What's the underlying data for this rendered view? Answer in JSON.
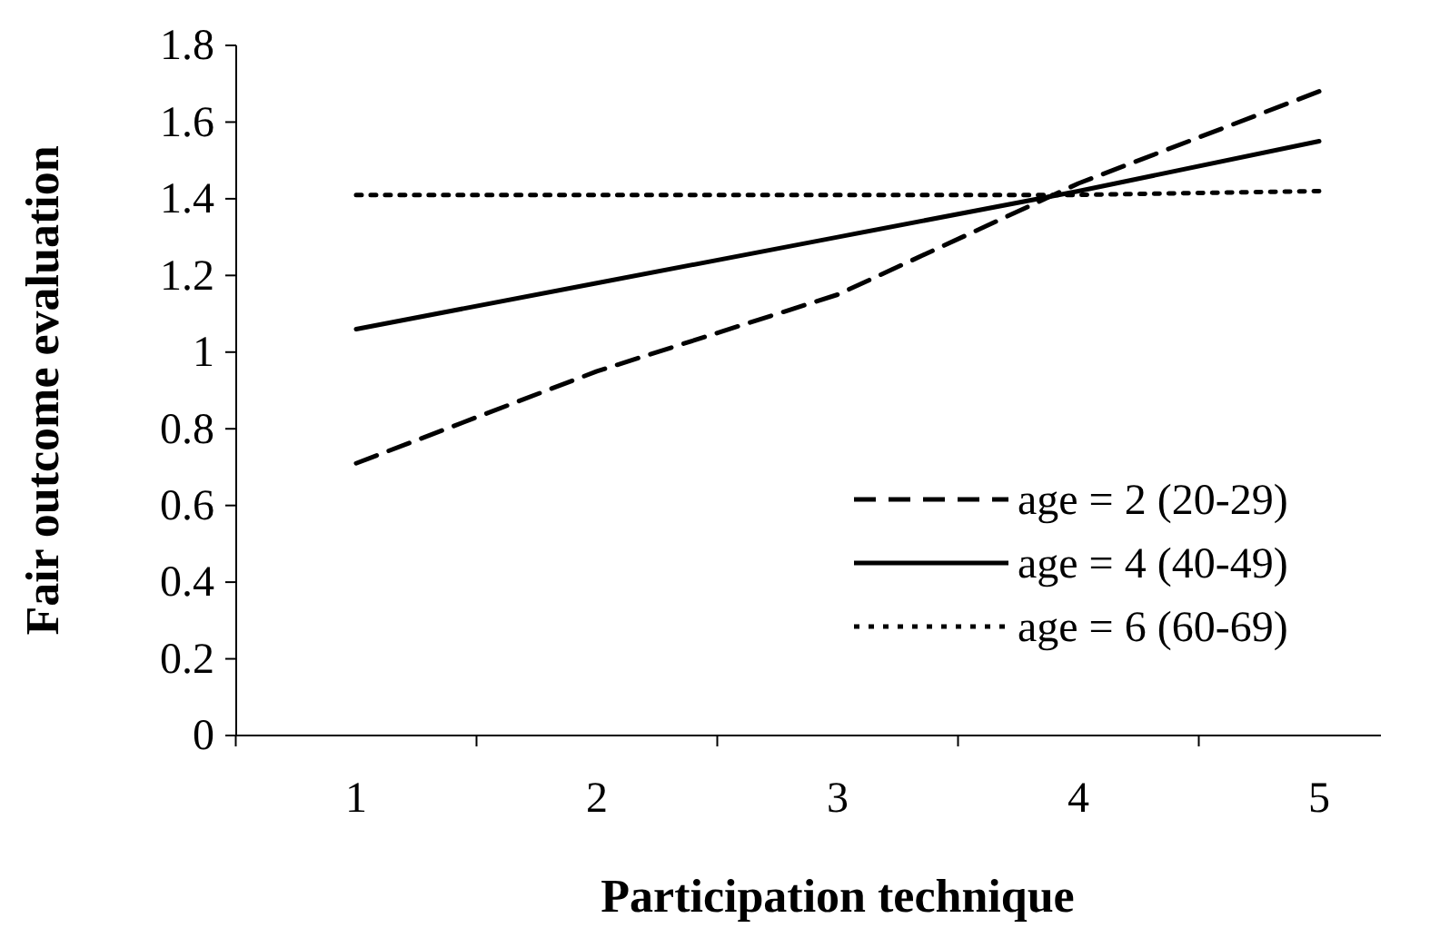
{
  "chart_data": {
    "type": "line",
    "xlabel": "Participation technique",
    "ylabel": "Fair outcome evaluation",
    "categories": [
      "1",
      "2",
      "3",
      "4",
      "5"
    ],
    "series": [
      {
        "name": "age = 2 (20-29)",
        "color": "#000000",
        "line_style": "dashed",
        "values": [
          0.71,
          0.95,
          1.15,
          1.44,
          1.68
        ]
      },
      {
        "name": "age = 4 (40-49)",
        "color": "#000000",
        "line_style": "solid",
        "values": [
          1.06,
          1.18,
          1.3,
          1.42,
          1.55
        ]
      },
      {
        "name": "age = 6 (60-69)",
        "color": "#000000",
        "line_style": "dotted",
        "values": [
          1.41,
          1.41,
          1.41,
          1.41,
          1.42
        ]
      }
    ],
    "ylim": [
      0,
      1.8
    ],
    "yticks": [
      0,
      0.2,
      0.4,
      0.6,
      0.8,
      1,
      1.2,
      1.4,
      1.6,
      1.8
    ],
    "legend": "bottom right",
    "marker": "none",
    "grid": false
  }
}
